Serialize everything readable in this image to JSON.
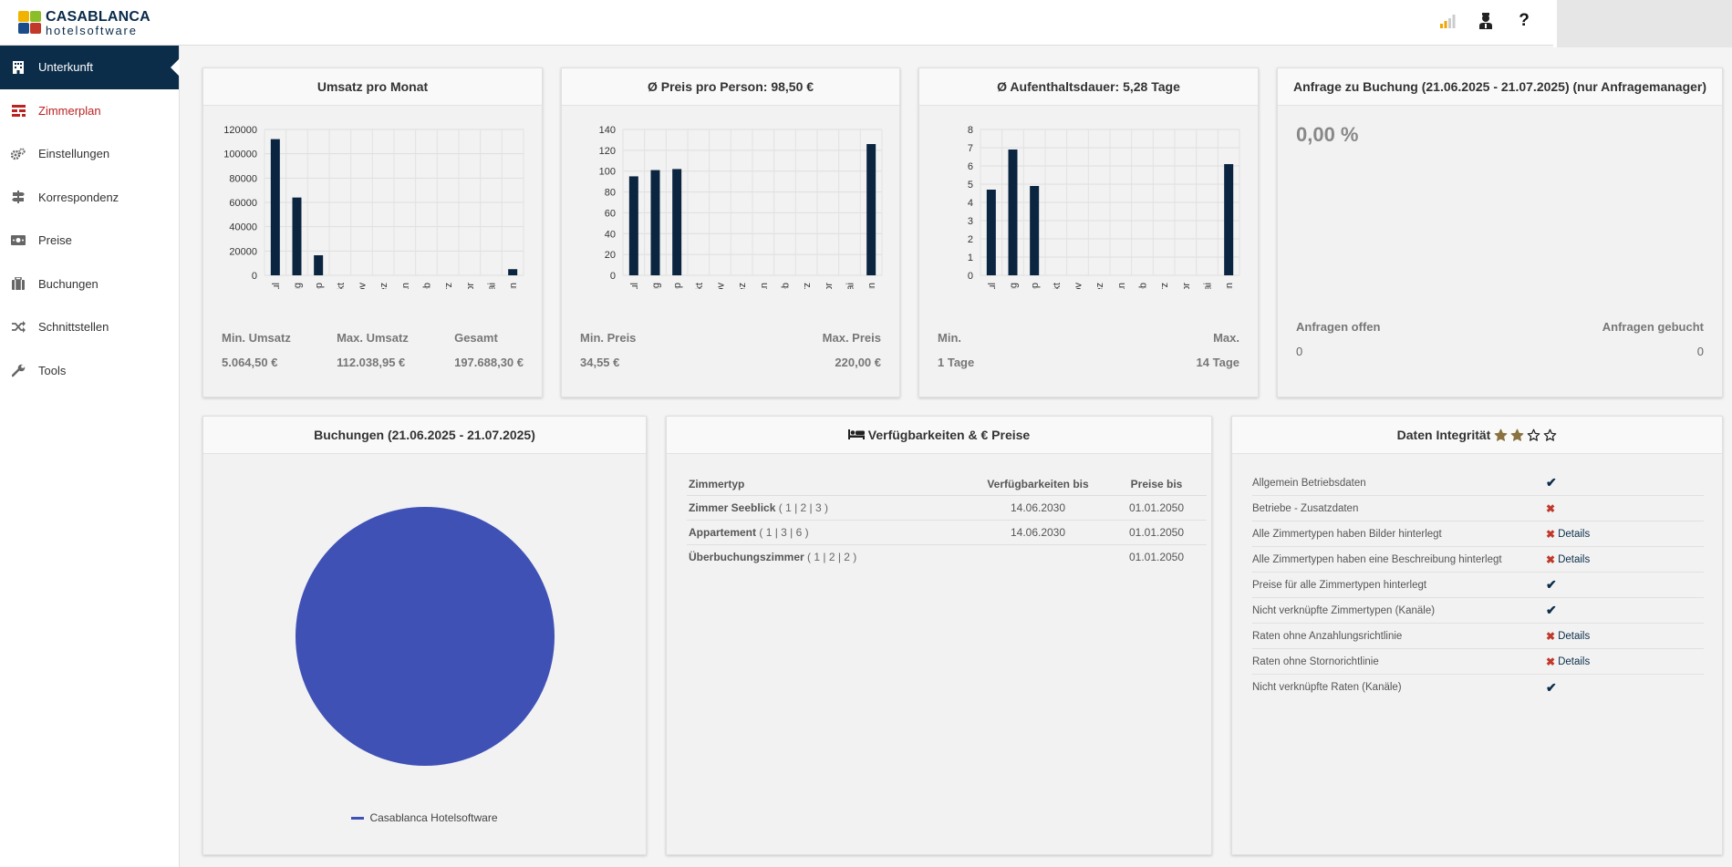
{
  "logo": {
    "line1": "CASABLANCA",
    "line2": "hotelsoftware",
    "colors": [
      "#f0b400",
      "#8bbf2a",
      "#1a4c8a",
      "#c0392b"
    ]
  },
  "header": {
    "icons": [
      "signal-icon",
      "support-agent-icon",
      "help-icon"
    ],
    "help_label": "?"
  },
  "sidebar": {
    "items": [
      {
        "label": "Unterkunft",
        "icon": "building-icon",
        "state": "active"
      },
      {
        "label": "Zimmerplan",
        "icon": "room-plan-icon",
        "state": "highlight"
      },
      {
        "label": "Einstellungen",
        "icon": "gears-icon",
        "state": "normal"
      },
      {
        "label": "Korrespondenz",
        "icon": "signpost-icon",
        "state": "normal"
      },
      {
        "label": "Preise",
        "icon": "money-icon",
        "state": "normal"
      },
      {
        "label": "Buchungen",
        "icon": "suitcase-icon",
        "state": "normal"
      },
      {
        "label": "Schnittstellen",
        "icon": "shuffle-icon",
        "state": "normal"
      },
      {
        "label": "Tools",
        "icon": "wrench-icon",
        "state": "normal"
      }
    ]
  },
  "revenue": {
    "title": "Umsatz pro Monat",
    "stats": [
      {
        "label": "Min. Umsatz",
        "value": "5.064,50 €"
      },
      {
        "label": "Max. Umsatz",
        "value": "112.038,95 €"
      },
      {
        "label": "Gesamt",
        "value": "197.688,30 €"
      }
    ]
  },
  "price": {
    "title": "Ø Preis pro Person: 98,50 €",
    "stats": [
      {
        "label": "Min. Preis",
        "value": "34,55 €"
      },
      {
        "label": "Max. Preis",
        "value": "220,00 €"
      }
    ]
  },
  "stay": {
    "title": "Ø Aufenthaltsdauer: 5,28 Tage",
    "stats": [
      {
        "label": "Min.",
        "value": "1 Tage"
      },
      {
        "label": "Max.",
        "value": "14 Tage"
      }
    ]
  },
  "inquiry": {
    "title": "Anfrage zu Buchung (21.06.2025 - 21.07.2025) (nur Anfragemanager)",
    "percent": "0,00 %",
    "stats": [
      {
        "label": "Anfragen offen",
        "value": "0"
      },
      {
        "label": "Anfragen gebucht",
        "value": "0"
      }
    ]
  },
  "bookings": {
    "title": "Buchungen (21.06.2025 - 21.07.2025)",
    "legend": "Casablanca Hotelsoftware"
  },
  "availability": {
    "title": "Verfügbarkeiten & € Preise",
    "title_icon": "bed-icon",
    "headers": [
      "Zimmertyp",
      "Verfügbarkeiten bis",
      "Preise bis"
    ],
    "rows": [
      {
        "name": "Zimmer Seeblick",
        "nums": "( 1 | 2 | 3 )",
        "avail": "14.06.2030",
        "price": "01.01.2050"
      },
      {
        "name": "Appartement",
        "nums": "( 1 | 3 | 6 )",
        "avail": "14.06.2030",
        "price": "01.01.2050"
      },
      {
        "name": "Überbuchungszimmer",
        "nums": "( 1 | 2 | 2 )",
        "avail": "",
        "price": "01.01.2050"
      }
    ]
  },
  "integrity": {
    "title": "Daten Integrität",
    "stars_filled": 2,
    "stars_total": 4,
    "details_label": "Details",
    "rows": [
      {
        "label": "Allgemein Betriebsdaten",
        "status": "ok",
        "details": false
      },
      {
        "label": "Betriebe - Zusatzdaten",
        "status": "bad",
        "details": false
      },
      {
        "label": "Alle Zimmertypen haben Bilder hinterlegt",
        "status": "bad",
        "details": true
      },
      {
        "label": "Alle Zimmertypen haben eine Beschreibung hinterlegt",
        "status": "bad",
        "details": true
      },
      {
        "label": "Preise für alle Zimmertypen hinterlegt",
        "status": "ok",
        "details": false
      },
      {
        "label": "Nicht verknüpfte Zimmertypen (Kanäle)",
        "status": "ok",
        "details": false
      },
      {
        "label": "Raten ohne Anzahlungsrichtlinie",
        "status": "bad",
        "details": true
      },
      {
        "label": "Raten ohne Stornorichtlinie",
        "status": "bad",
        "details": true
      },
      {
        "label": "Nicht verknüpfte Raten (Kanäle)",
        "status": "ok",
        "details": false
      }
    ]
  },
  "chart_data": [
    {
      "type": "bar",
      "categories": [
        "Jul",
        "Aug",
        "Sep",
        "Okt",
        "Nov",
        "Dez",
        "Jan",
        "Feb",
        "Mrz",
        "Apr",
        "Mai",
        "Jun"
      ],
      "values": [
        112039,
        64000,
        16500,
        0,
        0,
        0,
        0,
        0,
        0,
        0,
        0,
        5065
      ],
      "yticks": [
        0,
        20000,
        40000,
        60000,
        80000,
        100000,
        120000
      ],
      "ylim": [
        0,
        120000
      ],
      "color": "#0b2540",
      "grid": true
    },
    {
      "type": "bar",
      "categories": [
        "Jul",
        "Aug",
        "Sep",
        "Okt",
        "Nov",
        "Dez",
        "Jan",
        "Feb",
        "Mrz",
        "Apr",
        "Mai",
        "Jun"
      ],
      "values": [
        95,
        101,
        102,
        0,
        0,
        0,
        0,
        0,
        0,
        0,
        0,
        126
      ],
      "yticks": [
        0,
        20,
        40,
        60,
        80,
        100,
        120,
        140
      ],
      "ylim": [
        0,
        140
      ],
      "color": "#0b2540",
      "grid": true
    },
    {
      "type": "bar",
      "categories": [
        "Jul",
        "Aug",
        "Sep",
        "Okt",
        "Nov",
        "Dez",
        "Jan",
        "Feb",
        "Mrz",
        "Apr",
        "Mai",
        "Jun"
      ],
      "values": [
        4.7,
        6.9,
        4.9,
        0,
        0,
        0,
        0,
        0,
        0,
        0,
        0,
        6.1
      ],
      "yticks": [
        0,
        1,
        2,
        3,
        4,
        5,
        6,
        7,
        8
      ],
      "ylim": [
        0,
        8
      ],
      "color": "#0b2540",
      "grid": true
    },
    {
      "type": "pie",
      "categories": [
        "Casablanca Hotelsoftware"
      ],
      "values": [
        100
      ],
      "color": "#3f51b5",
      "legend": "bottom"
    }
  ]
}
